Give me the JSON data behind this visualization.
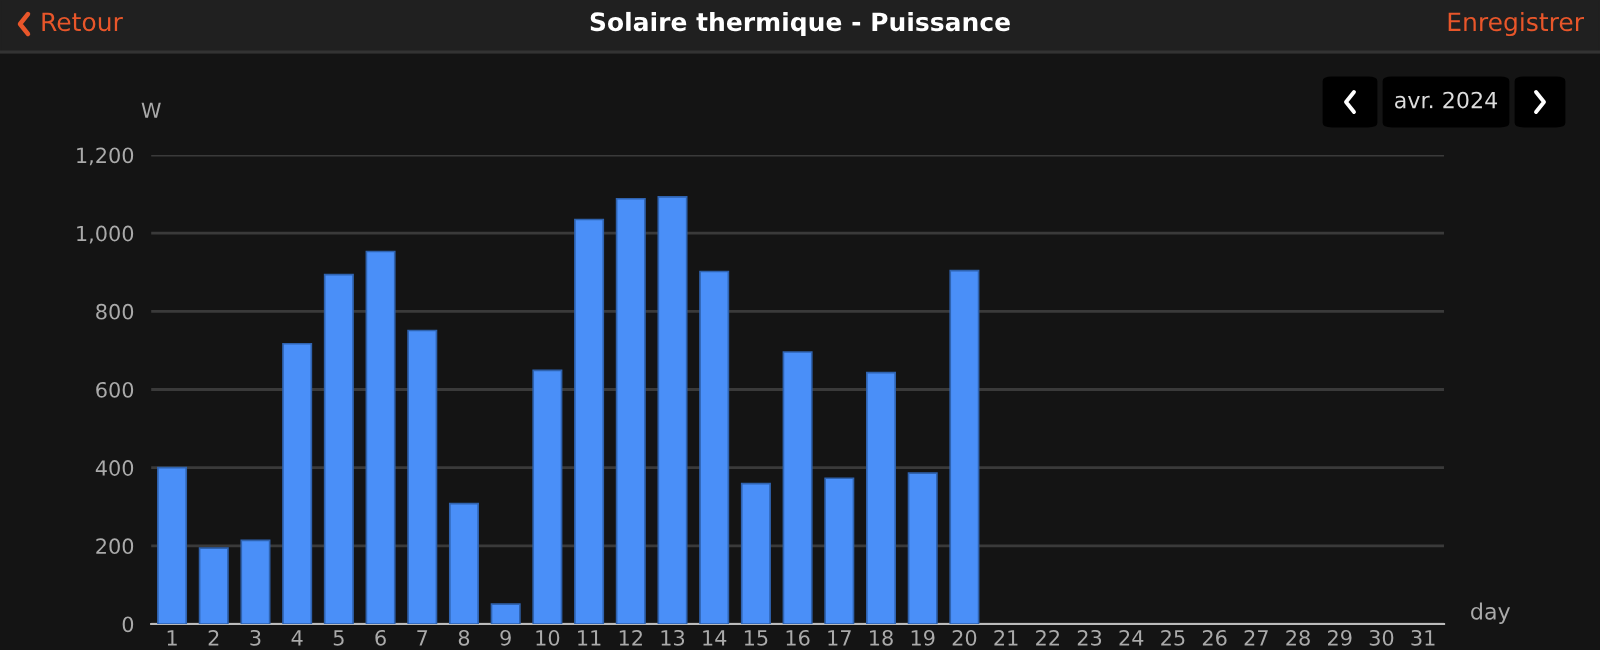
{
  "chart_data": {
    "type": "bar",
    "title": "Solaire thermique - Puissance",
    "subtitle": "avr. 2024",
    "annotations": [
      "Retour",
      "Enregistrer"
    ],
    "xlabel": "day",
    "ylabel": "W",
    "categories": [
      "1",
      "2",
      "3",
      "4",
      "5",
      "6",
      "7",
      "8",
      "9",
      "10",
      "11",
      "12",
      "13",
      "14",
      "15",
      "16",
      "17",
      "18",
      "19",
      "20",
      "21",
      "22",
      "23",
      "24",
      "25",
      "26",
      "27",
      "28",
      "29",
      "30",
      "31"
    ],
    "series": [
      {
        "color": "#4a8ff8",
        "values": [
          400,
          194,
          214,
          717,
          894,
          953,
          751,
          308,
          51,
          649,
          1035,
          1088,
          1093,
          902,
          359,
          696,
          373,
          643,
          386,
          904,
          null,
          null,
          null,
          null,
          null,
          null,
          null,
          null,
          null,
          null,
          null
        ]
      }
    ],
    "ylim": [
      0,
      1200
    ],
    "yticks": [
      0,
      {
        "value": 200,
        "label": "200"
      },
      {
        "value": 400,
        "label": "400"
      },
      {
        "value": 600,
        "label": "600"
      },
      {
        "value": 800,
        "label": "800"
      },
      {
        "value": 1000,
        "label": "1,000"
      },
      {
        "value": 1200,
        "label": "1,200"
      }
    ],
    "grid": "y",
    "legend": false
  }
}
